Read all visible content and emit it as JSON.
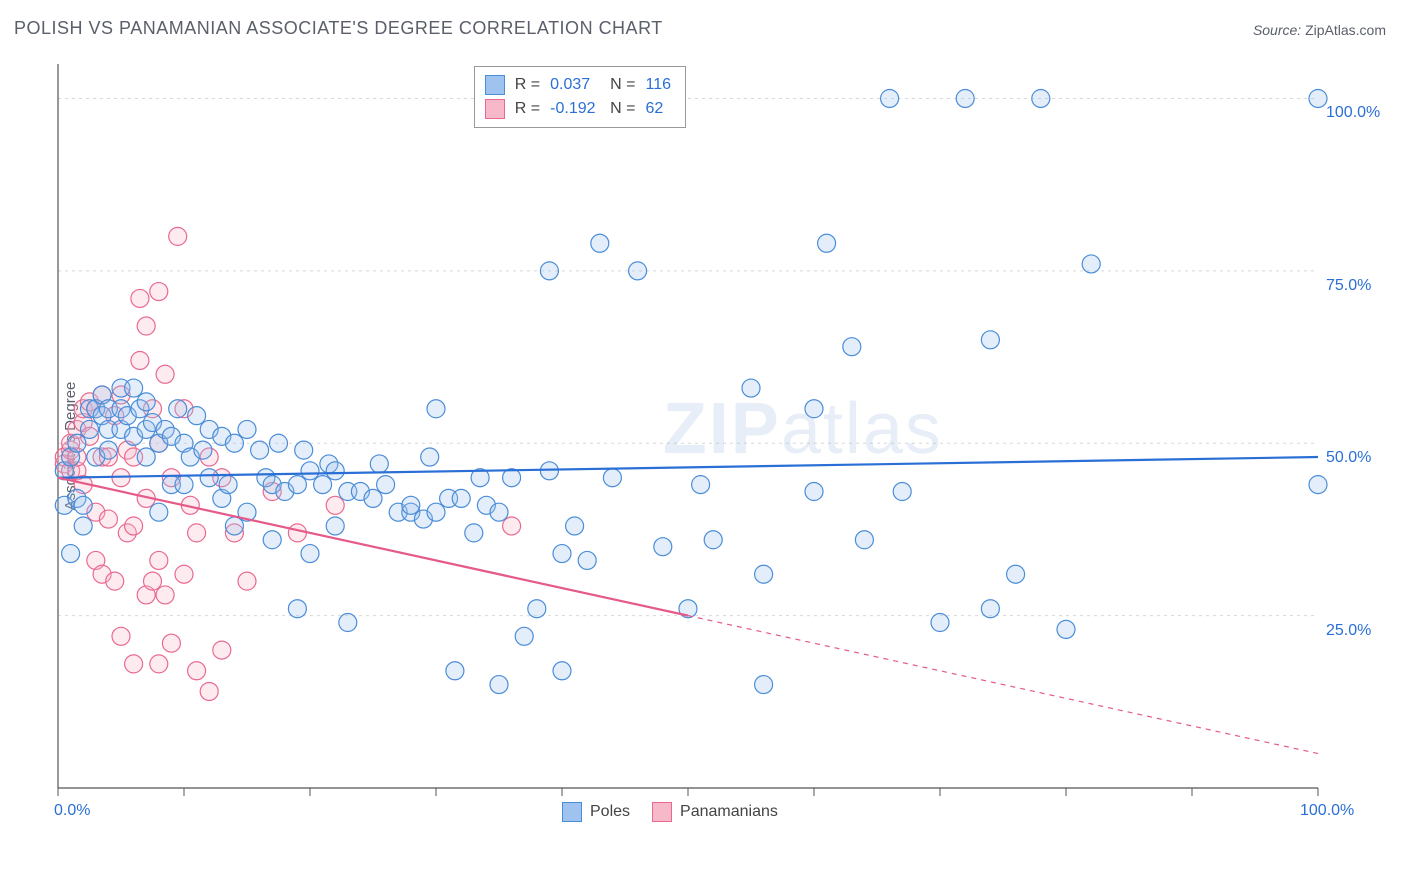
{
  "title": "POLISH VS PANAMANIAN ASSOCIATE'S DEGREE CORRELATION CHART",
  "source_label": "Source:",
  "source_value": "ZipAtlas.com",
  "ylabel": "Associate's Degree",
  "watermark": "ZIPatlas",
  "chart": {
    "type": "scatter",
    "xlim": [
      0,
      100
    ],
    "ylim": [
      0,
      105
    ],
    "x_ticks": [
      0,
      10,
      20,
      30,
      40,
      50,
      60,
      70,
      80,
      90,
      100
    ],
    "y_gridlines": [
      25,
      50,
      75,
      100
    ],
    "x_axis_labels": {
      "start": "0.0%",
      "end": "100.0%"
    },
    "y_axis_labels": [
      "25.0%",
      "50.0%",
      "75.0%",
      "100.0%"
    ],
    "grid_color": "#d8d8d8",
    "axis_color": "#555555",
    "background_color": "#ffffff",
    "marker_radius": 9,
    "marker_stroke_width": 1.2,
    "marker_fill_opacity": 0.28,
    "line_width": 2.2,
    "series": [
      {
        "name": "Poles",
        "color_fill": "#9dc3ee",
        "color_stroke": "#4a8dd8",
        "line_color": "#2a6fd6",
        "r": "0.037",
        "n": "116",
        "trend": {
          "x1": 0,
          "y1": 45,
          "x2": 100,
          "y2": 48,
          "solid_until": 100
        },
        "points": [
          [
            0.5,
            41
          ],
          [
            0.5,
            46
          ],
          [
            1,
            34
          ],
          [
            1,
            48
          ],
          [
            1.5,
            42
          ],
          [
            1.5,
            50
          ],
          [
            2,
            38
          ],
          [
            2,
            41
          ],
          [
            2.5,
            55
          ],
          [
            2.5,
            52
          ],
          [
            3,
            48
          ],
          [
            3,
            55
          ],
          [
            3.5,
            54
          ],
          [
            3.5,
            57
          ],
          [
            4,
            52
          ],
          [
            4,
            55
          ],
          [
            4,
            49
          ],
          [
            5,
            52
          ],
          [
            5,
            55
          ],
          [
            5,
            58
          ],
          [
            5.5,
            54
          ],
          [
            6,
            51
          ],
          [
            6,
            58
          ],
          [
            6.5,
            55
          ],
          [
            7,
            48
          ],
          [
            7,
            52
          ],
          [
            7,
            56
          ],
          [
            7.5,
            53
          ],
          [
            8,
            40
          ],
          [
            8,
            50
          ],
          [
            8.5,
            52
          ],
          [
            9,
            44
          ],
          [
            9,
            51
          ],
          [
            9.5,
            55
          ],
          [
            10,
            44
          ],
          [
            10,
            50
          ],
          [
            10.5,
            48
          ],
          [
            11,
            54
          ],
          [
            11.5,
            49
          ],
          [
            12,
            45
          ],
          [
            12,
            52
          ],
          [
            13,
            42
          ],
          [
            13,
            51
          ],
          [
            13.5,
            44
          ],
          [
            14,
            38
          ],
          [
            14,
            50
          ],
          [
            15,
            40
          ],
          [
            15,
            52
          ],
          [
            16,
            49
          ],
          [
            16.5,
            45
          ],
          [
            17,
            36
          ],
          [
            17,
            44
          ],
          [
            17.5,
            50
          ],
          [
            18,
            43
          ],
          [
            19,
            26
          ],
          [
            19,
            44
          ],
          [
            19.5,
            49
          ],
          [
            20,
            34
          ],
          [
            20,
            46
          ],
          [
            21,
            44
          ],
          [
            21.5,
            47
          ],
          [
            22,
            38
          ],
          [
            22,
            46
          ],
          [
            23,
            24
          ],
          [
            23,
            43
          ],
          [
            24,
            43
          ],
          [
            25,
            42
          ],
          [
            25.5,
            47
          ],
          [
            26,
            44
          ],
          [
            27,
            40
          ],
          [
            28,
            40
          ],
          [
            28,
            41
          ],
          [
            29,
            39
          ],
          [
            29.5,
            48
          ],
          [
            30,
            55
          ],
          [
            30,
            40
          ],
          [
            31,
            42
          ],
          [
            31.5,
            17
          ],
          [
            32,
            42
          ],
          [
            33,
            37
          ],
          [
            33.5,
            45
          ],
          [
            34,
            41
          ],
          [
            35,
            15
          ],
          [
            35,
            40
          ],
          [
            36,
            45
          ],
          [
            37,
            22
          ],
          [
            38,
            26
          ],
          [
            39,
            75
          ],
          [
            39,
            46
          ],
          [
            40,
            17
          ],
          [
            40,
            34
          ],
          [
            41,
            38
          ],
          [
            42,
            33
          ],
          [
            43,
            79
          ],
          [
            44,
            45
          ],
          [
            46,
            75
          ],
          [
            48,
            35
          ],
          [
            50,
            26
          ],
          [
            51,
            44
          ],
          [
            52,
            36
          ],
          [
            55,
            58
          ],
          [
            56,
            31
          ],
          [
            56,
            15
          ],
          [
            60,
            43
          ],
          [
            60,
            55
          ],
          [
            61,
            79
          ],
          [
            63,
            64
          ],
          [
            64,
            36
          ],
          [
            66,
            100
          ],
          [
            67,
            43
          ],
          [
            70,
            24
          ],
          [
            72,
            100
          ],
          [
            74,
            26
          ],
          [
            74,
            65
          ],
          [
            76,
            31
          ],
          [
            78,
            100
          ],
          [
            80,
            23
          ],
          [
            82,
            76
          ],
          [
            100,
            100
          ],
          [
            100,
            44
          ]
        ]
      },
      {
        "name": "Panamanians",
        "color_fill": "#f7b8c9",
        "color_stroke": "#e96a90",
        "line_color": "#e55a88",
        "r": "-0.192",
        "n": "62",
        "trend": {
          "x1": 0,
          "y1": 45,
          "x2": 100,
          "y2": 5,
          "solid_until": 50
        },
        "points": [
          [
            0.5,
            47
          ],
          [
            0.5,
            48
          ],
          [
            1,
            46
          ],
          [
            1,
            49
          ],
          [
            1,
            50
          ],
          [
            1.5,
            46
          ],
          [
            1.5,
            48
          ],
          [
            1.5,
            52
          ],
          [
            2,
            44
          ],
          [
            2,
            53
          ],
          [
            2,
            55
          ],
          [
            2.5,
            51
          ],
          [
            2.5,
            56
          ],
          [
            3,
            33
          ],
          [
            3,
            40
          ],
          [
            3,
            55
          ],
          [
            3.5,
            31
          ],
          [
            3.5,
            48
          ],
          [
            3.5,
            57
          ],
          [
            4,
            39
          ],
          [
            4,
            48
          ],
          [
            4.5,
            30
          ],
          [
            4.5,
            54
          ],
          [
            5,
            22
          ],
          [
            5,
            45
          ],
          [
            5,
            57
          ],
          [
            5.5,
            37
          ],
          [
            5.5,
            49
          ],
          [
            6,
            18
          ],
          [
            6,
            38
          ],
          [
            6,
            48
          ],
          [
            6.5,
            62
          ],
          [
            6.5,
            71
          ],
          [
            7,
            28
          ],
          [
            7,
            42
          ],
          [
            7,
            67
          ],
          [
            7.5,
            30
          ],
          [
            7.5,
            55
          ],
          [
            8,
            18
          ],
          [
            8,
            33
          ],
          [
            8,
            50
          ],
          [
            8,
            72
          ],
          [
            8.5,
            28
          ],
          [
            8.5,
            60
          ],
          [
            9,
            21
          ],
          [
            9,
            45
          ],
          [
            9.5,
            80
          ],
          [
            10,
            31
          ],
          [
            10,
            55
          ],
          [
            10.5,
            41
          ],
          [
            11,
            17
          ],
          [
            11,
            37
          ],
          [
            12,
            48
          ],
          [
            12,
            14
          ],
          [
            13,
            45
          ],
          [
            13,
            20
          ],
          [
            14,
            37
          ],
          [
            15,
            30
          ],
          [
            17,
            43
          ],
          [
            19,
            37
          ],
          [
            22,
            41
          ],
          [
            36,
            38
          ]
        ]
      }
    ],
    "bottom_legend": [
      {
        "label": "Poles",
        "fill": "#9dc3ee",
        "stroke": "#4a8dd8"
      },
      {
        "label": "Panamanians",
        "fill": "#f7b8c9",
        "stroke": "#e96a90"
      }
    ]
  }
}
